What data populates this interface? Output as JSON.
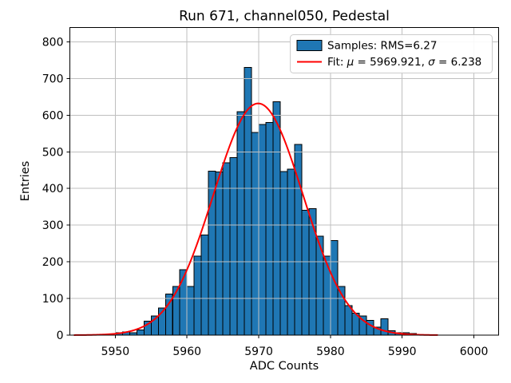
{
  "chart_data": {
    "type": "bar",
    "title": "Run 671, channel050, Pedestal",
    "xlabel": "ADC Counts",
    "ylabel": "Entries",
    "xlim": [
      5943.67,
      6003.44
    ],
    "ylim": [
      0,
      839
    ],
    "xticks": [
      5950,
      5960,
      5970,
      5980,
      5990,
      6000
    ],
    "yticks": [
      0,
      100,
      200,
      300,
      400,
      500,
      600,
      700,
      800
    ],
    "grid": true,
    "grid_color": "#bfbfbf",
    "background_color": "#ffffff",
    "histogram": {
      "bin_start": 5950,
      "bin_width": 1,
      "counts": [
        7,
        9,
        6,
        14,
        38,
        52,
        74,
        112,
        133,
        178,
        133,
        215,
        273,
        447,
        445,
        470,
        484,
        609,
        730,
        553,
        575,
        580,
        637,
        446,
        453,
        520,
        341,
        345,
        270,
        215,
        258,
        133,
        80,
        60,
        52,
        40,
        22,
        45,
        12,
        7,
        6,
        4
      ],
      "fill_color": "#1f77b4",
      "edge_color": "#000000"
    },
    "fit_curve": {
      "mu": 5969.921,
      "sigma": 6.238,
      "peak_height": 632,
      "color": "#ff0000",
      "x_start": 5944.3,
      "x_end": 5994.9
    },
    "legend": {
      "entries": [
        {
          "marker": "patch",
          "label": "Samples: RMS=6.27",
          "parts": [
            {
              "t": "Samples: RMS=6.27"
            }
          ]
        },
        {
          "marker": "line",
          "label": "Fit: μ = 5969.921, σ = 6.238",
          "parts": [
            {
              "t": "Fit: "
            },
            {
              "t": "μ",
              "math": true
            },
            {
              "t": " = 5969.921, "
            },
            {
              "t": "σ",
              "math": true
            },
            {
              "t": " = 6.238"
            }
          ]
        }
      ]
    }
  }
}
